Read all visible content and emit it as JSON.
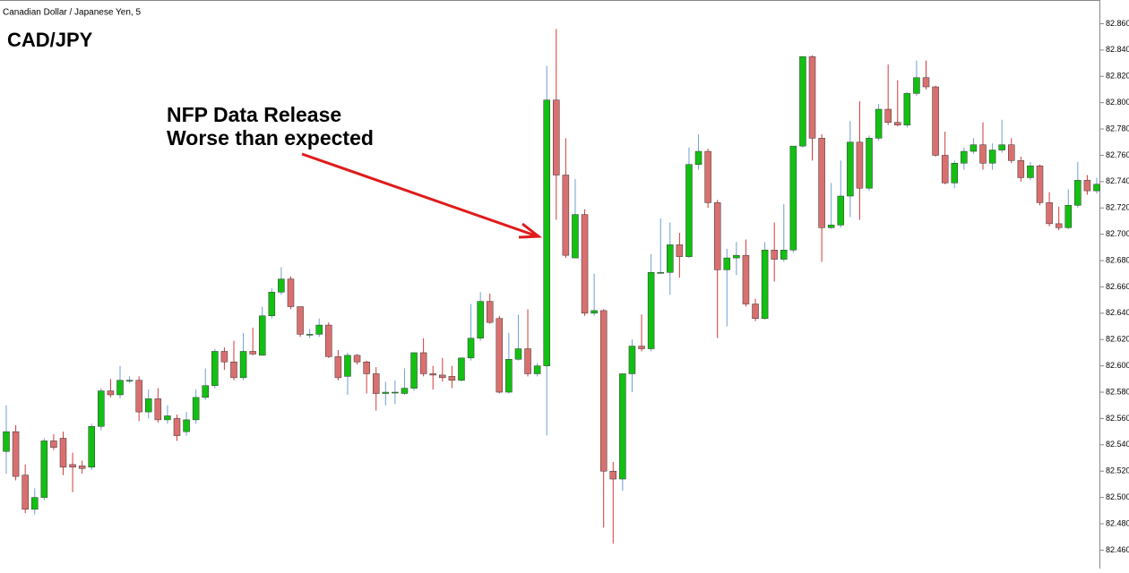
{
  "chart_data": {
    "type": "candlestick",
    "title": "Canadian Dollar / Japanese Yen, 5",
    "symbol": "CAD/JPY",
    "annotation": [
      "NFP Data Release",
      "Worse than expected"
    ],
    "open": [
      82.535,
      82.55,
      82.517,
      82.491,
      82.5,
      82.543,
      82.545,
      82.525,
      82.524,
      82.523,
      82.554,
      82.581,
      82.578,
      82.589,
      82.589,
      82.565,
      82.575,
      82.559,
      82.56,
      82.55,
      82.559,
      82.576,
      82.585,
      82.611,
      82.603,
      82.591,
      82.611,
      82.608,
      82.638,
      82.656,
      82.666,
      82.645,
      82.624,
      82.624,
      82.631,
      82.607,
      82.592,
      82.608,
      82.603,
      82.594,
      82.579,
      82.58,
      82.579,
      82.583,
      82.61,
      82.594,
      82.593,
      82.592,
      82.589,
      82.606,
      82.621,
      82.649,
      82.636,
      82.58,
      82.605,
      82.613,
      82.594,
      82.6,
      82.802,
      82.745,
      82.682,
      82.715,
      82.64,
      82.642,
      82.52,
      82.514,
      82.594,
      82.615,
      82.613,
      82.671,
      82.671,
      82.692,
      82.683,
      82.753,
      82.763,
      82.724,
      82.673,
      82.682,
      82.684,
      82.647,
      82.636,
      82.688,
      82.681,
      82.688,
      82.767,
      82.835,
      82.773,
      82.705,
      82.707,
      82.729,
      82.77,
      82.735,
      82.773,
      82.795,
      82.785,
      82.783,
      82.807,
      82.819,
      82.812,
      82.76,
      82.739,
      82.754,
      82.763,
      82.768,
      82.754,
      82.764,
      82.768,
      82.756,
      82.743,
      82.752,
      82.724,
      82.708,
      82.705,
      82.722,
      82.741,
      82.733
    ],
    "high": [
      82.57,
      82.555,
      82.525,
      82.507,
      82.545,
      82.548,
      82.55,
      82.534,
      82.528,
      82.556,
      82.583,
      82.59,
      82.6,
      82.592,
      82.592,
      82.582,
      82.583,
      82.57,
      82.563,
      82.565,
      82.582,
      82.598,
      82.613,
      82.614,
      82.619,
      82.625,
      82.629,
      82.645,
      82.659,
      82.675,
      82.668,
      82.645,
      82.628,
      82.636,
      82.633,
      82.612,
      82.61,
      82.609,
      82.604,
      82.599,
      82.588,
      82.589,
      82.598,
      82.61,
      82.621,
      82.6,
      82.606,
      82.6,
      82.606,
      82.647,
      82.656,
      82.655,
      82.638,
      82.625,
      82.639,
      82.643,
      82.602,
      82.828,
      82.856,
      82.773,
      82.742,
      82.719,
      82.67,
      82.643,
      82.527,
      82.594,
      82.62,
      82.639,
      82.685,
      82.712,
      82.709,
      82.701,
      82.766,
      82.776,
      82.765,
      82.726,
      82.689,
      82.694,
      82.696,
      82.651,
      82.694,
      82.709,
      82.723,
      82.767,
      82.835,
      82.836,
      82.776,
      82.739,
      82.756,
      82.786,
      82.801,
      82.775,
      82.799,
      82.829,
      82.817,
      82.808,
      82.832,
      82.832,
      82.813,
      82.778,
      82.756,
      82.766,
      82.773,
      82.785,
      82.769,
      82.787,
      82.773,
      82.759,
      82.755,
      82.753,
      82.732,
      82.721,
      82.734,
      82.755,
      82.745,
      82.743
    ],
    "low": [
      82.518,
      82.513,
      82.488,
      82.487,
      82.498,
      82.536,
      82.517,
      82.504,
      82.518,
      82.521,
      82.551,
      82.576,
      82.575,
      82.587,
      82.558,
      82.56,
      82.557,
      82.556,
      82.543,
      82.547,
      82.556,
      82.574,
      82.583,
      82.597,
      82.589,
      82.589,
      82.608,
      82.608,
      82.636,
      82.654,
      82.643,
      82.622,
      82.621,
      82.622,
      82.606,
      82.589,
      82.578,
      82.601,
      82.579,
      82.566,
      82.57,
      82.571,
      82.578,
      82.581,
      82.592,
      82.582,
      82.588,
      82.583,
      82.588,
      82.604,
      82.619,
      82.632,
      82.579,
      82.579,
      82.604,
      82.592,
      82.592,
      82.547,
      82.711,
      82.682,
      82.682,
      82.638,
      82.638,
      82.477,
      82.465,
      82.505,
      82.58,
      82.611,
      82.611,
      82.67,
      82.654,
      82.667,
      82.682,
      82.749,
      82.72,
      82.621,
      82.63,
      82.669,
      82.645,
      82.634,
      82.635,
      82.664,
      82.679,
      82.686,
      82.766,
      82.756,
      82.679,
      82.704,
      82.705,
      82.713,
      82.711,
      82.733,
      82.771,
      82.783,
      82.782,
      82.781,
      82.805,
      82.81,
      82.759,
      82.738,
      82.735,
      82.749,
      82.761,
      82.749,
      82.749,
      82.762,
      82.754,
      82.74,
      82.741,
      82.722,
      82.706,
      82.703,
      82.704,
      82.72,
      82.73,
      82.731
    ],
    "close": [
      82.55,
      82.516,
      82.491,
      82.5,
      82.543,
      82.538,
      82.523,
      82.523,
      82.522,
      82.554,
      82.581,
      82.578,
      82.589,
      82.589,
      82.565,
      82.575,
      82.559,
      82.562,
      82.547,
      82.559,
      82.576,
      82.585,
      82.611,
      82.603,
      82.591,
      82.611,
      82.609,
      82.638,
      82.656,
      82.666,
      82.645,
      82.624,
      82.624,
      82.631,
      82.607,
      82.591,
      82.608,
      82.603,
      82.594,
      82.579,
      82.58,
      82.58,
      82.583,
      82.61,
      82.594,
      82.593,
      82.591,
      82.589,
      82.606,
      82.621,
      82.649,
      82.633,
      82.58,
      82.605,
      82.613,
      82.594,
      82.6,
      82.802,
      82.745,
      82.684,
      82.715,
      82.64,
      82.642,
      82.52,
      82.514,
      82.594,
      82.615,
      82.613,
      82.671,
      82.671,
      82.692,
      82.683,
      82.753,
      82.763,
      82.724,
      82.673,
      82.682,
      82.684,
      82.647,
      82.636,
      82.688,
      82.681,
      82.688,
      82.767,
      82.835,
      82.773,
      82.705,
      82.707,
      82.729,
      82.77,
      82.735,
      82.773,
      82.795,
      82.785,
      82.783,
      82.807,
      82.819,
      82.812,
      82.76,
      82.739,
      82.754,
      82.763,
      82.768,
      82.754,
      82.764,
      82.768,
      82.756,
      82.743,
      82.752,
      82.724,
      82.708,
      82.705,
      82.722,
      82.741,
      82.733,
      82.738
    ],
    "up_color": "#12c012",
    "down_color": "#d9706f",
    "up_wick_color": "#6f9fd6",
    "down_wick_color": "#d23a3a",
    "ylim": [
      82.446,
      82.878
    ],
    "yticks": [
      {
        "value": 82.46,
        "label": "82.460"
      },
      {
        "value": 82.48,
        "label": "82.480"
      },
      {
        "value": 82.5,
        "label": "82.500"
      },
      {
        "value": 82.52,
        "label": "82.520"
      },
      {
        "value": 82.54,
        "label": "82.540"
      },
      {
        "value": 82.56,
        "label": "82.560"
      },
      {
        "value": 82.58,
        "label": "82.580"
      },
      {
        "value": 82.6,
        "label": "82.600"
      },
      {
        "value": 82.62,
        "label": "82.620"
      },
      {
        "value": 82.64,
        "label": "82.640"
      },
      {
        "value": 82.66,
        "label": "82.660"
      },
      {
        "value": 82.68,
        "label": "82.680"
      },
      {
        "value": 82.7,
        "label": "82.700"
      },
      {
        "value": 82.72,
        "label": "82.720"
      },
      {
        "value": 82.74,
        "label": "82.740"
      },
      {
        "value": 82.76,
        "label": "82.760"
      },
      {
        "value": 82.78,
        "label": "82.780"
      },
      {
        "value": 82.8,
        "label": "82.800"
      },
      {
        "value": 82.82,
        "label": "82.820"
      },
      {
        "value": 82.84,
        "label": "82.840"
      },
      {
        "value": 82.86,
        "label": "82.860"
      }
    ],
    "grid": false
  }
}
